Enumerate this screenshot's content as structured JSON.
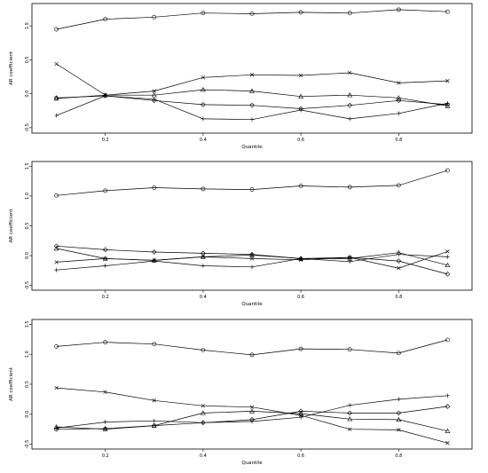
{
  "chart_data": [
    {
      "type": "line",
      "xlabel": "Quantile",
      "ylabel": "AR coefficient",
      "xlim": [
        0.05,
        0.95
      ],
      "ylim": [
        -0.58,
        1.33
      ],
      "x": [
        0.1,
        0.2,
        0.3,
        0.4,
        0.5,
        0.6,
        0.7,
        0.8,
        0.9
      ],
      "xticks": [
        "0.2",
        "0.4",
        "0.6",
        "0.8"
      ],
      "xtick_values": [
        0.2,
        0.4,
        0.6,
        0.8
      ],
      "yticks": [
        "-0.5",
        "0.0",
        "0.5",
        "1.0"
      ],
      "ytick_values": [
        -0.5,
        0.0,
        0.5,
        1.0
      ],
      "series": [
        {
          "marker": "circle",
          "values": [
            0.95,
            1.1,
            1.13,
            1.19,
            1.18,
            1.2,
            1.19,
            1.24,
            1.21
          ]
        },
        {
          "marker": "x",
          "values": [
            0.44,
            -0.02,
            0.04,
            0.24,
            0.28,
            0.27,
            0.31,
            0.16,
            0.19
          ]
        },
        {
          "marker": "triangle",
          "values": [
            -0.07,
            -0.02,
            -0.02,
            0.06,
            0.04,
            -0.04,
            -0.02,
            -0.06,
            -0.18
          ]
        },
        {
          "marker": "diamond",
          "values": [
            -0.06,
            -0.03,
            -0.1,
            -0.16,
            -0.17,
            -0.22,
            -0.17,
            -0.1,
            -0.16
          ]
        },
        {
          "marker": "plus",
          "values": [
            -0.32,
            -0.03,
            -0.08,
            -0.37,
            -0.38,
            -0.24,
            -0.37,
            -0.29,
            -0.14
          ]
        }
      ]
    },
    {
      "type": "line",
      "xlabel": "Quantile",
      "ylabel": "AR coefficient",
      "xlim": [
        0.05,
        0.95
      ],
      "ylim": [
        -0.58,
        1.58
      ],
      "x": [
        0.1,
        0.2,
        0.3,
        0.4,
        0.5,
        0.6,
        0.7,
        0.8,
        0.9
      ],
      "xticks": [
        "0.2",
        "0.4",
        "0.6",
        "0.8"
      ],
      "xtick_values": [
        0.2,
        0.4,
        0.6,
        0.8
      ],
      "yticks": [
        "-0.5",
        "0.0",
        "0.5",
        "1.0",
        "1.5"
      ],
      "ytick_values": [
        -0.5,
        0.0,
        0.5,
        1.0,
        1.5
      ],
      "series": [
        {
          "marker": "circle",
          "values": [
            1.01,
            1.09,
            1.14,
            1.12,
            1.11,
            1.17,
            1.15,
            1.18,
            1.43
          ]
        },
        {
          "marker": "diamond",
          "values": [
            0.16,
            0.1,
            0.06,
            0.04,
            0.02,
            -0.05,
            -0.03,
            -0.09,
            -0.31
          ]
        },
        {
          "marker": "triangle",
          "values": [
            0.12,
            -0.05,
            -0.08,
            -0.02,
            0.01,
            -0.05,
            -0.05,
            0.05,
            -0.16
          ]
        },
        {
          "marker": "x",
          "values": [
            -0.11,
            -0.05,
            -0.08,
            -0.02,
            -0.05,
            -0.07,
            -0.03,
            -0.21,
            0.07
          ]
        },
        {
          "marker": "plus",
          "values": [
            -0.24,
            -0.17,
            -0.09,
            -0.17,
            -0.19,
            -0.05,
            -0.1,
            0.02,
            -0.02
          ]
        }
      ]
    },
    {
      "type": "line",
      "xlabel": "Quantile",
      "ylabel": "AR coefficient",
      "xlim": [
        0.05,
        0.95
      ],
      "ylim": [
        -0.58,
        1.58
      ],
      "x": [
        0.1,
        0.2,
        0.3,
        0.4,
        0.5,
        0.6,
        0.7,
        0.8,
        0.9
      ],
      "xticks": [
        "0.2",
        "0.4",
        "0.6",
        "0.8"
      ],
      "xtick_values": [
        0.2,
        0.4,
        0.6,
        0.8
      ],
      "yticks": [
        "-0.5",
        "0.0",
        "0.5",
        "1.0",
        "1.5"
      ],
      "ytick_values": [
        -0.5,
        0.0,
        0.5,
        1.0,
        1.5
      ],
      "series": [
        {
          "marker": "circle",
          "values": [
            1.13,
            1.2,
            1.17,
            1.07,
            0.99,
            1.09,
            1.08,
            1.02,
            1.24
          ]
        },
        {
          "marker": "x",
          "values": [
            0.44,
            0.37,
            0.23,
            0.14,
            0.12,
            -0.02,
            -0.25,
            -0.26,
            -0.48
          ]
        },
        {
          "marker": "plus",
          "values": [
            -0.23,
            -0.13,
            -0.11,
            -0.14,
            -0.12,
            -0.05,
            0.15,
            0.25,
            0.31
          ]
        },
        {
          "marker": "triangle",
          "values": [
            -0.21,
            -0.25,
            -0.19,
            0.02,
            0.05,
            0.01,
            -0.08,
            -0.09,
            -0.28
          ]
        },
        {
          "marker": "diamond",
          "values": [
            -0.25,
            -0.24,
            -0.19,
            -0.14,
            -0.09,
            0.05,
            0.02,
            0.02,
            0.13
          ]
        }
      ]
    }
  ]
}
